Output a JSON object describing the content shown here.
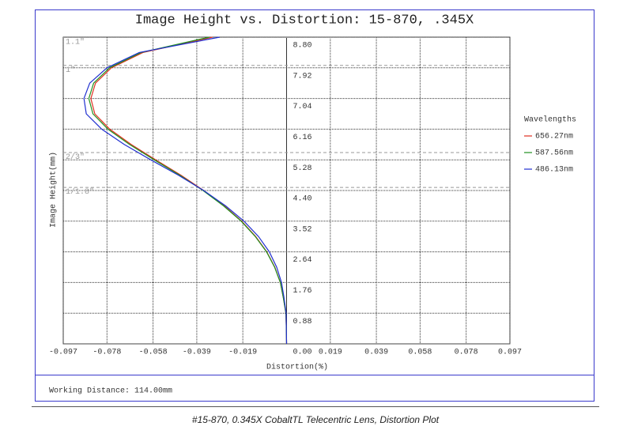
{
  "chart_data": {
    "type": "line",
    "title": "Image Height vs. Distortion: 15-870, .345X",
    "xlabel": "Distortion(%)",
    "ylabel": "Image Height(mm)",
    "legend_title": "Wavelengths",
    "legend": "right",
    "y": [
      0,
      0.44,
      0.88,
      1.32,
      1.76,
      2.2,
      2.64,
      3.08,
      3.52,
      3.96,
      4.4,
      4.84,
      5.28,
      5.72,
      6.16,
      6.6,
      7.04,
      7.48,
      7.92,
      8.36,
      8.8
    ],
    "series": [
      {
        "name": "656.27nm",
        "color": "#e03020",
        "values": [
          0,
          -0.0001,
          -0.0003,
          -0.0014,
          -0.0027,
          -0.0051,
          -0.0086,
          -0.0134,
          -0.0195,
          -0.0271,
          -0.036,
          -0.0459,
          -0.0569,
          -0.0675,
          -0.0768,
          -0.0833,
          -0.085,
          -0.083,
          -0.0761,
          -0.0624,
          -0.0322
        ]
      },
      {
        "name": "587.56nm",
        "color": "#209020",
        "values": [
          0,
          -0.0001,
          -0.0003,
          -0.0014,
          -0.0027,
          -0.0052,
          -0.0087,
          -0.0136,
          -0.0197,
          -0.0274,
          -0.0363,
          -0.0464,
          -0.0575,
          -0.0682,
          -0.0776,
          -0.0841,
          -0.0859,
          -0.0838,
          -0.0769,
          -0.0632,
          -0.0336
        ]
      },
      {
        "name": "486.13nm",
        "color": "#2030d0",
        "values": [
          0,
          -0.0001,
          -0.0002,
          -0.0011,
          -0.0022,
          -0.0043,
          -0.0075,
          -0.0122,
          -0.0185,
          -0.0265,
          -0.036,
          -0.047,
          -0.059,
          -0.0705,
          -0.0803,
          -0.087,
          -0.088,
          -0.0855,
          -0.078,
          -0.064,
          -0.0291
        ]
      }
    ],
    "xlim": [
      -0.097,
      0.097
    ],
    "ylim": [
      0,
      8.8
    ],
    "xticks": [
      -0.097,
      -0.078,
      -0.058,
      -0.039,
      -0.019,
      {
        "value": 0,
        "label": "0.00"
      },
      0.019,
      0.039,
      0.058,
      0.078,
      0.097
    ],
    "yticks": [
      0.88,
      1.76,
      2.64,
      3.52,
      {
        "value": 4.4,
        "label": "4.40"
      },
      5.28,
      6.16,
      7.04,
      7.92,
      {
        "value": 8.8,
        "label": "8.80"
      }
    ],
    "grid": true,
    "sensor_lines": [
      {
        "label": "1.1\"",
        "value": 8.8
      },
      {
        "label": "1\"",
        "value": 8
      },
      {
        "label": "2/3\"",
        "value": 5.5
      },
      {
        "label": "1/1.8\"",
        "value": 4.5
      }
    ]
  },
  "footer": {
    "working_distance": "Working Distance: 114.00mm",
    "caption": "#15-870, 0.345X CobaltTL Telecentric Lens, Distortion Plot"
  }
}
